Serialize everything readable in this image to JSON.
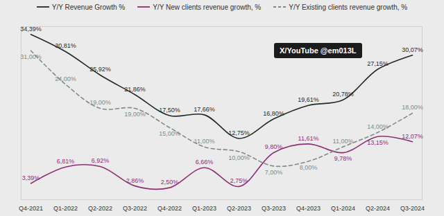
{
  "chart_data": {
    "type": "line",
    "categories": [
      "Q4-2021",
      "Q1-2022",
      "Q2-2022",
      "Q3-2022",
      "Q4-2022",
      "Q1-2023",
      "Q2-2023",
      "Q3-2023",
      "Q4-2023",
      "Q1-2024",
      "Q2-2024",
      "Q3-2024"
    ],
    "series": [
      {
        "name": "Y/Y Revenue Growth %",
        "color": "#1e2b28",
        "line_style": "solid",
        "values": [
          34.39,
          30.81,
          25.92,
          21.86,
          17.5,
          17.66,
          12.75,
          16.8,
          19.61,
          20.78,
          27.15,
          30.07
        ],
        "value_labels": [
          "34,39%",
          "30,81%",
          "25,92%",
          "21,86%",
          "17,50%",
          "17,66%",
          "12,75%",
          "16,80%",
          "19,61%",
          "20,78%",
          "27,15%",
          "30,07%"
        ]
      },
      {
        "name": "Y/Y New clients revenue growth, %",
        "color": "#8e2f73",
        "line_style": "solid",
        "values": [
          3.39,
          6.81,
          6.92,
          2.86,
          2.5,
          6.66,
          2.75,
          9.8,
          11.61,
          9.78,
          13.15,
          12.07
        ],
        "value_labels": [
          "3,39%",
          "6,81%",
          "6,92%",
          "2,86%",
          "2,50%",
          "6,66%",
          "2,75%",
          "9,80%",
          "11,61%",
          "9,78%",
          "13,15%",
          "12,07%"
        ]
      },
      {
        "name": "Y/Y Existing clients revenue growth, %",
        "color": "#7d8c88",
        "line_style": "dashed",
        "values": [
          31.0,
          24.0,
          19.0,
          19.0,
          15.0,
          11.0,
          10.0,
          7.0,
          8.0,
          11.0,
          14.0,
          18.0
        ],
        "value_labels": [
          "31,00%",
          "24,00%",
          "19,00%",
          "19,00%",
          "15,00%",
          "11,00%",
          "10,00%",
          "7,00%",
          "8,00%",
          "11,00%",
          "14,00%",
          "18,00%"
        ]
      }
    ],
    "annotation": "X/YouTube @em013L",
    "ylim": [
      0,
      36
    ],
    "grid": false,
    "legend": "top",
    "data_labels": true,
    "tick_labels": "x"
  }
}
